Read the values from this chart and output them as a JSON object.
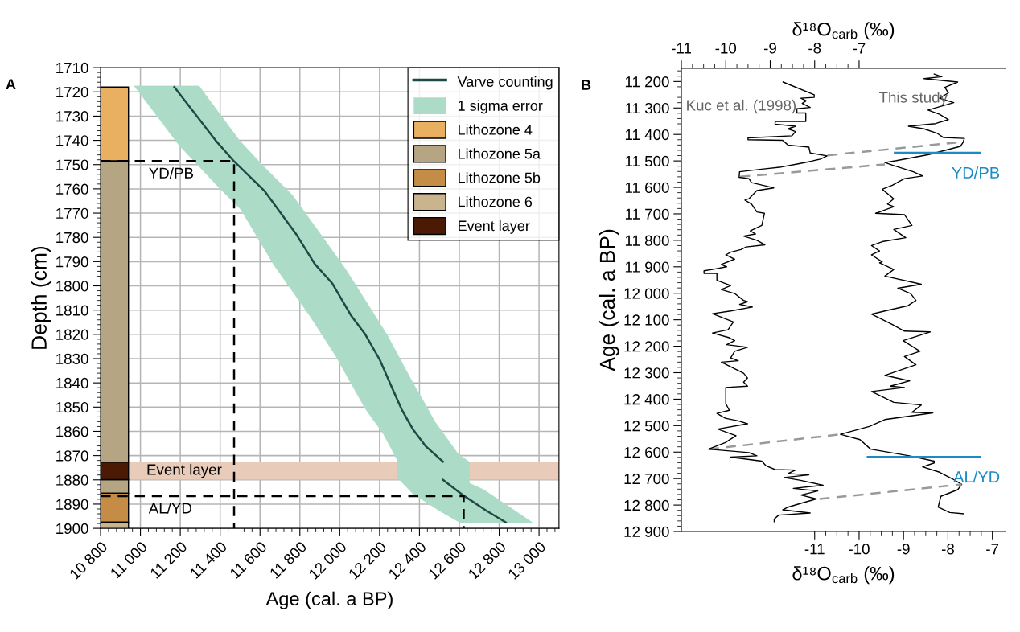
{
  "chart_data": [
    {
      "type": "line",
      "title": "A",
      "xlabel": "Age (cal. a BP)",
      "ylabel": "Depth (cm)",
      "xlim": [
        10800,
        13100
      ],
      "ylim": [
        1900,
        1710
      ],
      "grid": true,
      "legend": "top right",
      "xticks": [
        {
          "value": 10800,
          "label": "10 800"
        },
        {
          "value": 11000,
          "label": "11 000"
        },
        {
          "value": 11200,
          "label": "11 200"
        },
        {
          "value": 11400,
          "label": "11 400"
        },
        {
          "value": 11600,
          "label": "11 600"
        },
        {
          "value": 11800,
          "label": "11 800"
        },
        {
          "value": 12000,
          "label": "12 000"
        },
        {
          "value": 12200,
          "label": "12 200"
        },
        {
          "value": 12400,
          "label": "12 400"
        },
        {
          "value": 12600,
          "label": "12 600"
        },
        {
          "value": 12800,
          "label": "12 800"
        },
        {
          "value": 13000,
          "label": "13 000"
        },
        {
          "value": 10840,
          "label": null
        },
        {
          "value": 10880,
          "label": null
        },
        {
          "value": 10920,
          "label": null
        },
        {
          "value": 10960,
          "label": null
        },
        {
          "value": 11040,
          "label": null
        },
        {
          "value": 11080,
          "label": null
        },
        {
          "value": 11120,
          "label": null
        },
        {
          "value": 11160,
          "label": null
        },
        {
          "value": 11240,
          "label": null
        },
        {
          "value": 11280,
          "label": null
        },
        {
          "value": 11320,
          "label": null
        },
        {
          "value": 11360,
          "label": null
        },
        {
          "value": 11440,
          "label": null
        },
        {
          "value": 11480,
          "label": null
        },
        {
          "value": 11520,
          "label": null
        },
        {
          "value": 11560,
          "label": null
        },
        {
          "value": 11640,
          "label": null
        },
        {
          "value": 11680,
          "label": null
        },
        {
          "value": 11720,
          "label": null
        },
        {
          "value": 11760,
          "label": null
        },
        {
          "value": 11840,
          "label": null
        },
        {
          "value": 11880,
          "label": null
        },
        {
          "value": 11920,
          "label": null
        },
        {
          "value": 11960,
          "label": null
        },
        {
          "value": 12040,
          "label": null
        },
        {
          "value": 12080,
          "label": null
        },
        {
          "value": 12120,
          "label": null
        },
        {
          "value": 12160,
          "label": null
        },
        {
          "value": 12240,
          "label": null
        },
        {
          "value": 12280,
          "label": null
        },
        {
          "value": 12320,
          "label": null
        },
        {
          "value": 12360,
          "label": null
        },
        {
          "value": 12440,
          "label": null
        },
        {
          "value": 12480,
          "label": null
        },
        {
          "value": 12520,
          "label": null
        },
        {
          "value": 12560,
          "label": null
        },
        {
          "value": 12640,
          "label": null
        },
        {
          "value": 12680,
          "label": null
        },
        {
          "value": 12720,
          "label": null
        },
        {
          "value": 12760,
          "label": null
        },
        {
          "value": 12840,
          "label": null
        },
        {
          "value": 12880,
          "label": null
        },
        {
          "value": 12920,
          "label": null
        },
        {
          "value": 12960,
          "label": null
        },
        {
          "value": 13040,
          "label": null
        },
        {
          "value": 13080,
          "label": null
        }
      ],
      "yticks": [
        1710,
        1720,
        1730,
        1740,
        1750,
        1760,
        1770,
        1780,
        1790,
        1800,
        1810,
        1820,
        1830,
        1840,
        1850,
        1860,
        1870,
        1880,
        1890,
        1900,
        {
          "value": 1712,
          "label": null
        },
        {
          "value": 1714,
          "label": null
        },
        {
          "value": 1716,
          "label": null
        },
        {
          "value": 1718,
          "label": null
        },
        {
          "value": 1722,
          "label": null
        },
        {
          "value": 1724,
          "label": null
        },
        {
          "value": 1726,
          "label": null
        },
        {
          "value": 1728,
          "label": null
        },
        {
          "value": 1732,
          "label": null
        },
        {
          "value": 1734,
          "label": null
        },
        {
          "value": 1736,
          "label": null
        },
        {
          "value": 1738,
          "label": null
        },
        {
          "value": 1742,
          "label": null
        },
        {
          "value": 1744,
          "label": null
        },
        {
          "value": 1746,
          "label": null
        },
        {
          "value": 1748,
          "label": null
        },
        {
          "value": 1752,
          "label": null
        },
        {
          "value": 1754,
          "label": null
        },
        {
          "value": 1756,
          "label": null
        },
        {
          "value": 1758,
          "label": null
        },
        {
          "value": 1762,
          "label": null
        },
        {
          "value": 1764,
          "label": null
        },
        {
          "value": 1766,
          "label": null
        },
        {
          "value": 1768,
          "label": null
        },
        {
          "value": 1772,
          "label": null
        },
        {
          "value": 1774,
          "label": null
        },
        {
          "value": 1776,
          "label": null
        },
        {
          "value": 1778,
          "label": null
        },
        {
          "value": 1782,
          "label": null
        },
        {
          "value": 1784,
          "label": null
        },
        {
          "value": 1786,
          "label": null
        },
        {
          "value": 1788,
          "label": null
        },
        {
          "value": 1792,
          "label": null
        },
        {
          "value": 1794,
          "label": null
        },
        {
          "value": 1796,
          "label": null
        },
        {
          "value": 1798,
          "label": null
        },
        {
          "value": 1802,
          "label": null
        },
        {
          "value": 1804,
          "label": null
        },
        {
          "value": 1806,
          "label": null
        },
        {
          "value": 1808,
          "label": null
        },
        {
          "value": 1812,
          "label": null
        },
        {
          "value": 1814,
          "label": null
        },
        {
          "value": 1816,
          "label": null
        },
        {
          "value": 1818,
          "label": null
        },
        {
          "value": 1822,
          "label": null
        },
        {
          "value": 1824,
          "label": null
        },
        {
          "value": 1826,
          "label": null
        },
        {
          "value": 1828,
          "label": null
        },
        {
          "value": 1832,
          "label": null
        },
        {
          "value": 1834,
          "label": null
        },
        {
          "value": 1836,
          "label": null
        },
        {
          "value": 1838,
          "label": null
        },
        {
          "value": 1842,
          "label": null
        },
        {
          "value": 1844,
          "label": null
        },
        {
          "value": 1846,
          "label": null
        },
        {
          "value": 1848,
          "label": null
        },
        {
          "value": 1852,
          "label": null
        },
        {
          "value": 1854,
          "label": null
        },
        {
          "value": 1856,
          "label": null
        },
        {
          "value": 1858,
          "label": null
        },
        {
          "value": 1862,
          "label": null
        },
        {
          "value": 1864,
          "label": null
        },
        {
          "value": 1866,
          "label": null
        },
        {
          "value": 1868,
          "label": null
        },
        {
          "value": 1872,
          "label": null
        },
        {
          "value": 1874,
          "label": null
        },
        {
          "value": 1876,
          "label": null
        },
        {
          "value": 1878,
          "label": null
        },
        {
          "value": 1882,
          "label": null
        },
        {
          "value": 1884,
          "label": null
        },
        {
          "value": 1886,
          "label": null
        },
        {
          "value": 1888,
          "label": null
        },
        {
          "value": 1892,
          "label": null
        },
        {
          "value": 1894,
          "label": null
        },
        {
          "value": 1896,
          "label": null
        },
        {
          "value": 1898,
          "label": null
        }
      ],
      "bands": [
        {
          "axis": "y",
          "from": 1872.7,
          "to": 1879.9,
          "label": "Event layer",
          "color": "#e8cbb8"
        }
      ],
      "series": [
        {
          "name": "Varve counting",
          "color": "#1e4a44",
          "x": [
            11170,
            11377,
            11468,
            11624,
            11780,
            11875,
            11963,
            12055,
            12128,
            12201,
            12265,
            12311,
            12366,
            12430,
            12518,
            null,
            12518,
            12622,
            12732,
            12833
          ],
          "values": [
            1718,
            1740,
            1748.5,
            1761,
            1778.5,
            1791,
            1799,
            1812,
            1820,
            1830.5,
            1842.5,
            1851,
            1859,
            1866,
            1872.5,
            null,
            1880,
            1886.5,
            1892.5,
            1897.5
          ]
        },
        {
          "name": "1 sigma error",
          "type": "area",
          "color": "#acdcc8",
          "x": [
            10970,
            11194,
            11395,
            11505,
            11670,
            11853,
            11981,
            12128,
            12219,
            12289,
            12289,
            12366,
            12494,
            12608,
            12970,
            12860,
            12723,
            12650,
            12650,
            12595,
            12476,
            12430,
            12366,
            12238,
            12110,
            12064,
            12027,
            11908,
            11762,
            11615,
            11496,
            11294
          ],
          "values": [
            1717.6,
            1742,
            1759.5,
            1768.6,
            1791.4,
            1812.7,
            1829,
            1850.6,
            1861,
            1871.8,
            1879,
            1885.6,
            1892.4,
            1897.8,
            1897.8,
            1891.7,
            1884.1,
            1881.4,
            1872.6,
            1869.5,
            1855.9,
            1849,
            1839.9,
            1820.3,
            1803.6,
            1797.6,
            1792.9,
            1779.2,
            1762.6,
            1750.5,
            1740,
            1717.6
          ]
        },
        {
          "name": "Lithozone 4",
          "type": "bar",
          "color": "#e8b060",
          "x": [
            10870
          ],
          "base": [
            1718
          ],
          "values": [
            30.5
          ]
        },
        {
          "name": "Lithozone 5a",
          "type": "bar",
          "color": "#b5a583",
          "x": [
            10870,
            10870
          ],
          "base": [
            1748.5,
            1879.9
          ],
          "values": [
            124.2,
            5.6
          ]
        },
        {
          "name": "Lithozone 5b",
          "type": "bar",
          "color": "#c48c45",
          "x": [
            10870
          ],
          "base": [
            1885.5
          ],
          "values": [
            12
          ]
        },
        {
          "name": "Lithozone 6",
          "type": "bar",
          "color": "#c9b48e",
          "x": [
            10870
          ],
          "base": [
            1897.5
          ],
          "values": [
            2.5
          ]
        },
        {
          "name": "Event layer",
          "type": "bar",
          "color": "#4a1a05",
          "x": [
            10870
          ],
          "base": [
            1872.7
          ],
          "values": [
            7.2
          ]
        },
        {
          "type": "line",
          "color": "#000000",
          "line_style": "dashed",
          "x": [
            10800,
            11470,
            11470
          ],
          "values": [
            1748.5,
            1748.5,
            1900
          ]
        },
        {
          "type": "line",
          "color": "#000000",
          "line_style": "dashed",
          "x": [
            10800,
            12622,
            12622
          ],
          "values": [
            1886.7,
            1886.7,
            1900
          ]
        }
      ],
      "annotations": [
        "YD/PB",
        "AL/YD"
      ]
    },
    {
      "type": "line",
      "title": "B",
      "ylabel": "Age (cal. a BP)",
      "xlabel": "δ¹⁸O$_{carb}$ (‰)",
      "x2label": "δ¹⁸O$_{carb}$ (‰)",
      "xlim": [
        -14,
        -6.7
      ],
      "x2lim": [
        -11,
        -3.7
      ],
      "ylim": [
        12900,
        11150
      ],
      "xticks": [
        -11,
        -10,
        -9,
        -8,
        -7,
        {
          "value": -10.75,
          "label": null
        },
        {
          "value": -10.5,
          "label": null
        },
        {
          "value": -10.25,
          "label": null
        },
        {
          "value": -9.75,
          "label": null
        },
        {
          "value": -9.5,
          "label": null
        },
        {
          "value": -9.25,
          "label": null
        },
        {
          "value": -8.75,
          "label": null
        },
        {
          "value": -8.5,
          "label": null
        },
        {
          "value": -8.25,
          "label": null
        },
        {
          "value": -7.75,
          "label": null
        },
        {
          "value": -7.5,
          "label": null
        },
        {
          "value": -7.25,
          "label": null
        }
      ],
      "x2ticks": [
        -11,
        -10,
        -9,
        -8,
        -7,
        {
          "value": -10.75,
          "label": null
        },
        {
          "value": -10.5,
          "label": null
        },
        {
          "value": -10.25,
          "label": null
        },
        {
          "value": -9.75,
          "label": null
        },
        {
          "value": -9.5,
          "label": null
        },
        {
          "value": -9.25,
          "label": null
        },
        {
          "value": -8.75,
          "label": null
        },
        {
          "value": -8.5,
          "label": null
        },
        {
          "value": -8.25,
          "label": null
        },
        {
          "value": -7.75,
          "label": null
        },
        {
          "value": -7.5,
          "label": null
        },
        {
          "value": -7.25,
          "label": null
        }
      ],
      "yticks": [
        {
          "value": 11200,
          "label": "11 200"
        },
        {
          "value": 11300,
          "label": "11 300"
        },
        {
          "value": 11400,
          "label": "11 400"
        },
        {
          "value": 11500,
          "label": "11 500"
        },
        {
          "value": 11600,
          "label": "11 600"
        },
        {
          "value": 11700,
          "label": "11 700"
        },
        {
          "value": 11800,
          "label": "11 800"
        },
        {
          "value": 11900,
          "label": "11 900"
        },
        {
          "value": 12000,
          "label": "12 000"
        },
        {
          "value": 12100,
          "label": "12 100"
        },
        {
          "value": 12200,
          "label": "12 200"
        },
        {
          "value": 12300,
          "label": "12 300"
        },
        {
          "value": 12400,
          "label": "12 400"
        },
        {
          "value": 12500,
          "label": "12 500"
        },
        {
          "value": 12600,
          "label": "12 600"
        },
        {
          "value": 12700,
          "label": "12 700"
        },
        {
          "value": 12800,
          "label": "12 800"
        },
        {
          "value": 12900,
          "label": "12 900"
        },
        {
          "value": 11160,
          "label": null
        },
        {
          "value": 11180,
          "label": null
        },
        {
          "value": 11220,
          "label": null
        },
        {
          "value": 11240,
          "label": null
        },
        {
          "value": 11260,
          "label": null
        },
        {
          "value": 11280,
          "label": null
        },
        {
          "value": 11320,
          "label": null
        },
        {
          "value": 11340,
          "label": null
        },
        {
          "value": 11360,
          "label": null
        },
        {
          "value": 11380,
          "label": null
        },
        {
          "value": 11420,
          "label": null
        },
        {
          "value": 11440,
          "label": null
        },
        {
          "value": 11460,
          "label": null
        },
        {
          "value": 11480,
          "label": null
        },
        {
          "value": 11520,
          "label": null
        },
        {
          "value": 11540,
          "label": null
        },
        {
          "value": 11560,
          "label": null
        },
        {
          "value": 11580,
          "label": null
        },
        {
          "value": 11620,
          "label": null
        },
        {
          "value": 11640,
          "label": null
        },
        {
          "value": 11660,
          "label": null
        },
        {
          "value": 11680,
          "label": null
        },
        {
          "value": 11720,
          "label": null
        },
        {
          "value": 11740,
          "label": null
        },
        {
          "value": 11760,
          "label": null
        },
        {
          "value": 11780,
          "label": null
        },
        {
          "value": 11820,
          "label": null
        },
        {
          "value": 11840,
          "label": null
        },
        {
          "value": 11860,
          "label": null
        },
        {
          "value": 11880,
          "label": null
        },
        {
          "value": 11920,
          "label": null
        },
        {
          "value": 11940,
          "label": null
        },
        {
          "value": 11960,
          "label": null
        },
        {
          "value": 11980,
          "label": null
        },
        {
          "value": 12020,
          "label": null
        },
        {
          "value": 12040,
          "label": null
        },
        {
          "value": 12060,
          "label": null
        },
        {
          "value": 12080,
          "label": null
        },
        {
          "value": 12120,
          "label": null
        },
        {
          "value": 12140,
          "label": null
        },
        {
          "value": 12160,
          "label": null
        },
        {
          "value": 12180,
          "label": null
        },
        {
          "value": 12220,
          "label": null
        },
        {
          "value": 12240,
          "label": null
        },
        {
          "value": 12260,
          "label": null
        },
        {
          "value": 12280,
          "label": null
        },
        {
          "value": 12320,
          "label": null
        },
        {
          "value": 12340,
          "label": null
        },
        {
          "value": 12360,
          "label": null
        },
        {
          "value": 12380,
          "label": null
        },
        {
          "value": 12420,
          "label": null
        },
        {
          "value": 12440,
          "label": null
        },
        {
          "value": 12460,
          "label": null
        },
        {
          "value": 12480,
          "label": null
        },
        {
          "value": 12520,
          "label": null
        },
        {
          "value": 12540,
          "label": null
        },
        {
          "value": 12560,
          "label": null
        },
        {
          "value": 12580,
          "label": null
        },
        {
          "value": 12620,
          "label": null
        },
        {
          "value": 12640,
          "label": null
        },
        {
          "value": 12660,
          "label": null
        },
        {
          "value": 12680,
          "label": null
        },
        {
          "value": 12720,
          "label": null
        },
        {
          "value": 12740,
          "label": null
        },
        {
          "value": 12760,
          "label": null
        },
        {
          "value": 12780,
          "label": null
        },
        {
          "value": 12820,
          "label": null
        },
        {
          "value": 12840,
          "label": null
        },
        {
          "value": 12860,
          "label": null
        },
        {
          "value": 12880,
          "label": null
        }
      ],
      "series": [
        {
          "name": "Kuc et al. (1998)",
          "axis": "x2",
          "color": "#000000",
          "x": [
            -8.71,
            -8.01,
            -8.01,
            -8.31,
            -8.19,
            -8.28,
            -8.1,
            -8.4,
            -8.4,
            -8.2,
            -8.2,
            -8.89,
            -8.89,
            -8.43,
            -8.6,
            -8.43,
            -8.51,
            -9.5,
            -9.5,
            -8.72,
            -8.6,
            -8.13,
            -8.1,
            -7.72,
            -7.87,
            -8.07,
            -8.37,
            -8.75,
            -9.19,
            -9.69,
            -9.7,
            -9.48,
            -9.42,
            -8.92,
            -9.3,
            -9.48,
            -9.57,
            -9.42,
            -9.3,
            -9.13,
            -9.19,
            -9.45,
            -9.33,
            -9.6,
            -9.3,
            -9.12,
            -9.54,
            -9.66,
            -9.89,
            -10.0,
            -9.8,
            -10.1,
            -9.98,
            -10.3,
            -10.49,
            -10.49,
            -10.2,
            -10.2,
            -9.89,
            -10.1,
            -9.8,
            -9.6,
            -9.51,
            -9.69,
            -9.4,
            -9.89,
            -10.3,
            -9.83,
            -9.95,
            -10.3,
            -9.92,
            -9.8,
            -9.98,
            -9.51,
            -9.8,
            -9.89,
            -9.72,
            -10.1,
            -9.6,
            -9.51,
            -9.6,
            -9.51,
            -10.0,
            -10.0,
            -9.92,
            -10.2,
            -10.01,
            -9.72,
            -9.51,
            -10.18,
            -9.77,
            -10.01,
            -10.39,
            -9.48,
            -9.3,
            -9.89,
            -9.19,
            -9.1,
            -8.89,
            -8.43,
            -8.6,
            -8.13,
            -8.69,
            -8.34,
            -7.81,
            -8.48,
            -7.93,
            -8.31,
            -7.96,
            -8.28,
            -8.6,
            -8.72,
            -8.1,
            -8.81,
            -8.91,
            -8.91
          ],
          "values": [
            11202,
            11250,
            11260,
            11263,
            11273,
            11283,
            11298,
            11303,
            11319,
            11319,
            11351,
            11351,
            11361,
            11369,
            11379,
            11389,
            11405,
            11413,
            11420,
            11422,
            11440,
            11448,
            11470,
            11481,
            11493,
            11501,
            11511,
            11523,
            11531,
            11541,
            11562,
            11567,
            11582,
            11602,
            11612,
            11643,
            11648,
            11663,
            11693,
            11698,
            11744,
            11764,
            11776,
            11784,
            11800,
            11817,
            11825,
            11835,
            11845,
            11855,
            11871,
            11891,
            11900,
            11910,
            11915,
            11925,
            11925,
            11951,
            11971,
            11986,
            12001,
            12027,
            12032,
            12042,
            12052,
            12067,
            12077,
            12108,
            12138,
            12150,
            12168,
            12179,
            12194,
            12204,
            12219,
            12244,
            12255,
            12260,
            12302,
            12320,
            12336,
            12351,
            12356,
            12417,
            12442,
            12454,
            12472,
            12482,
            12493,
            12513,
            12538,
            12564,
            12589,
            12602,
            12614,
            12619,
            12634,
            12651,
            12666,
            12668,
            12681,
            12686,
            12696,
            12706,
            12725,
            12737,
            12747,
            12762,
            12777,
            12792,
            12808,
            12818,
            12830,
            12838,
            12853,
            12863
          ]
        },
        {
          "name": "This study",
          "color": "#000000",
          "x": [
            -8.31,
            -8.14,
            -8.54,
            -7.78,
            -8.07,
            -7.99,
            -8.19,
            -7.87,
            -8.45,
            -8.19,
            -7.99,
            -8.28,
            -8.89,
            -8.54,
            -8.25,
            -8.1,
            -7.63,
            -7.66,
            -7.72,
            -8.43,
            -9.16,
            -9.42,
            -9.25,
            -8.78,
            -8.57,
            -8.98,
            -9.25,
            -9.48,
            -9.22,
            -9.36,
            -9.22,
            -9.63,
            -8.98,
            -8.81,
            -9.22,
            -8.95,
            -9.48,
            -9.72,
            -9.54,
            -9.72,
            -9.48,
            -9.54,
            -9.22,
            -9.42,
            -8.6,
            -9.13,
            -8.84,
            -8.72,
            -8.9,
            -9.42,
            -9.72,
            -9.25,
            -8.98,
            -8.4,
            -9.01,
            -8.63,
            -8.98,
            -8.72,
            -9.42,
            -8.86,
            -9.3,
            -8.98,
            -9.72,
            -9.22,
            -8.6,
            -8.81,
            -8.34,
            -9.42,
            -9.77,
            -10.42,
            -9.98,
            -9.74,
            -8.87,
            -8.31,
            -8.31,
            -8.57,
            -8.19,
            -7.9,
            -7.69,
            -7.78,
            -8.16,
            -8.22,
            -7.96,
            -7.65
          ],
          "values": [
            11172,
            11182,
            11189,
            11202,
            11222,
            11243,
            11263,
            11280,
            11308,
            11324,
            11344,
            11359,
            11369,
            11379,
            11395,
            11412,
            11415,
            11430,
            11445,
            11476,
            11499,
            11506,
            11516,
            11541,
            11557,
            11567,
            11592,
            11607,
            11643,
            11663,
            11673,
            11698,
            11703,
            11744,
            11759,
            11790,
            11805,
            11820,
            11840,
            11855,
            11881,
            11885,
            11910,
            11935,
            11966,
            11981,
            12001,
            12027,
            12047,
            12067,
            12079,
            12118,
            12143,
            12146,
            12179,
            12219,
            12239,
            12270,
            12310,
            12331,
            12351,
            12356,
            12371,
            12412,
            12422,
            12450,
            12452,
            12477,
            12503,
            12533,
            12553,
            12589,
            12614,
            12634,
            12641,
            12656,
            12676,
            12701,
            12722,
            12742,
            12767,
            12808,
            12828,
            12833
          ]
        },
        {
          "type": "line",
          "color": "#999999",
          "line_style": "dashed",
          "x": [
            -10.71,
            -7.66
          ],
          "values": [
            11479,
            11428
          ]
        },
        {
          "type": "line",
          "color": "#999999",
          "line_style": "dashed",
          "x": [
            -12.68,
            -9.42
          ],
          "values": [
            11560,
            11513
          ]
        },
        {
          "type": "line",
          "color": "#999999",
          "line_style": "dashed",
          "x": [
            -13.38,
            -10.42
          ],
          "values": [
            12589,
            12533
          ]
        },
        {
          "type": "line",
          "color": "#999999",
          "line_style": "dashed",
          "x": [
            -10.89,
            -7.69
          ],
          "values": [
            12777,
            12722
          ]
        },
        {
          "type": "line",
          "color": "#1a8bc4",
          "x": [
            -9.19,
            -7.28
          ],
          "values": [
            11470,
            11470
          ]
        },
        {
          "type": "line",
          "color": "#1a8bc4",
          "x": [
            -9.8,
            -7.28
          ],
          "values": [
            12619,
            12619
          ]
        }
      ],
      "annotations": [
        "YD/PB",
        "AL/YD"
      ]
    }
  ]
}
